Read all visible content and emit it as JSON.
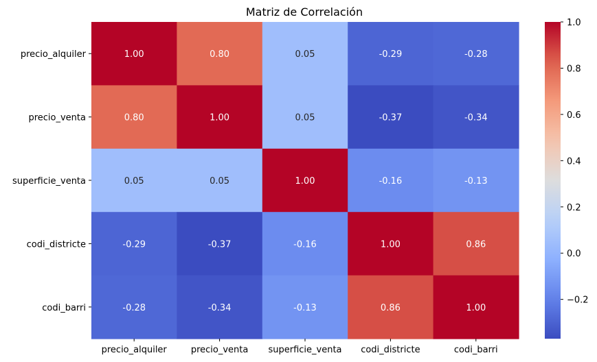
{
  "chart_data": {
    "type": "heatmap",
    "title": "Matriz de Correlación",
    "xlabel": "",
    "ylabel": "",
    "row_labels": [
      "precio_alquiler",
      "precio_venta",
      "superficie_venta",
      "codi_districte",
      "codi_barri"
    ],
    "col_labels": [
      "precio_alquiler",
      "precio_venta",
      "superficie_venta",
      "codi_districte",
      "codi_barri"
    ],
    "values": [
      [
        1.0,
        0.8,
        0.05,
        -0.29,
        -0.28
      ],
      [
        0.8,
        1.0,
        0.05,
        -0.37,
        -0.34
      ],
      [
        0.05,
        0.05,
        1.0,
        -0.16,
        -0.13
      ],
      [
        -0.29,
        -0.37,
        -0.16,
        1.0,
        0.86
      ],
      [
        -0.28,
        -0.34,
        -0.13,
        0.86,
        1.0
      ]
    ],
    "cell_labels": [
      [
        "1.00",
        "0.80",
        "0.05",
        "-0.29",
        "-0.28"
      ],
      [
        "0.80",
        "1.00",
        "0.05",
        "-0.37",
        "-0.34"
      ],
      [
        "0.05",
        "0.05",
        "1.00",
        "-0.16",
        "-0.13"
      ],
      [
        "-0.29",
        "-0.37",
        "-0.16",
        "1.00",
        "0.86"
      ],
      [
        "-0.28",
        "-0.34",
        "-0.13",
        "0.86",
        "1.00"
      ]
    ],
    "colormap": "coolwarm",
    "colorbar": {
      "vmin": -0.37,
      "vmax": 1.0,
      "ticks": [
        -0.2,
        0.0,
        0.2,
        0.4,
        0.6,
        0.8,
        1.0
      ],
      "tick_labels": [
        "−0.2",
        "0.0",
        "0.2",
        "0.4",
        "0.6",
        "0.8",
        "1.0"
      ]
    },
    "grid": false
  }
}
